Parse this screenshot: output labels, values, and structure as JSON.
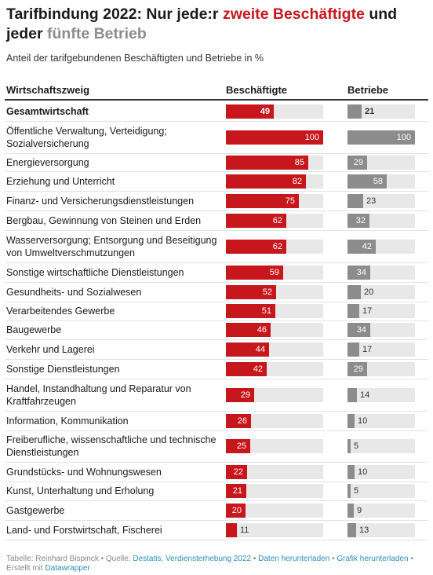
{
  "title": {
    "part1": "Tarifbindung 2022: Nur jede:r ",
    "part2": "zweite Beschäftigte",
    "part3": " und jeder ",
    "part4": "fünfte Betrieb"
  },
  "subtitle": "Anteil der tarifgebundenen Beschäftigten und Betriebe in %",
  "chart_data": {
    "type": "bar",
    "columns": [
      "Wirtschaftszweig",
      "Beschäftigte",
      "Betriebe"
    ],
    "xlim": [
      0,
      100
    ],
    "colors": {
      "Beschäftigte": "#c8161d",
      "Betriebe": "#8c8c8c",
      "background": "#e8e8e8"
    },
    "rows": [
      {
        "label": "Gesamtwirtschaft",
        "emp": 49,
        "est": 21,
        "bold": true
      },
      {
        "label": "Öffentliche Verwaltung, Verteidigung; Sozialversicherung",
        "emp": 100,
        "est": 100
      },
      {
        "label": "Energieversorgung",
        "emp": 85,
        "est": 29
      },
      {
        "label": "Erziehung und Unterricht",
        "emp": 82,
        "est": 58
      },
      {
        "label": "Finanz- und Versicherungsdienstleistungen",
        "emp": 75,
        "est": 23
      },
      {
        "label": "Bergbau, Gewinnung von Steinen und Erden",
        "emp": 62,
        "est": 32
      },
      {
        "label": "Wasserversorgung; Entsorgung und Beseitigung von Umweltverschmutzungen",
        "emp": 62,
        "est": 42
      },
      {
        "label": "Sonstige wirtschaftliche Dienstleistungen",
        "emp": 59,
        "est": 34
      },
      {
        "label": "Gesundheits- und Sozialwesen",
        "emp": 52,
        "est": 20
      },
      {
        "label": "Verarbeitendes Gewerbe",
        "emp": 51,
        "est": 17
      },
      {
        "label": "Baugewerbe",
        "emp": 46,
        "est": 34
      },
      {
        "label": "Verkehr und Lagerei",
        "emp": 44,
        "est": 17
      },
      {
        "label": "Sonstige Dienstleistungen",
        "emp": 42,
        "est": 29
      },
      {
        "label": "Handel, Instandhaltung und Reparatur von Kraftfahrzeugen",
        "emp": 29,
        "est": 14
      },
      {
        "label": "Information, Kommunikation",
        "emp": 26,
        "est": 10
      },
      {
        "label": "Freiberufliche, wissenschaftliche und technische Dienstleistungen",
        "emp": 25,
        "est": 5
      },
      {
        "label": "Grundstücks- und Wohnungswesen",
        "emp": 22,
        "est": 10
      },
      {
        "label": "Kunst, Unterhaltung und Erholung",
        "emp": 21,
        "est": 5
      },
      {
        "label": "Gastgewerbe",
        "emp": 20,
        "est": 9
      },
      {
        "label": "Land- und Forstwirtschaft, Fischerei",
        "emp": 11,
        "est": 13
      }
    ]
  },
  "footer": {
    "prefix": "Tabelle: Reinhard Bispinck • Quelle: ",
    "source": "Destatis, Verdiensterhebung 2022",
    "sep1": " • ",
    "download_data": "Daten herunterladen",
    "sep2": " • ",
    "download_chart": "Grafik herunterladen",
    "sep3": " • Erstellt mit ",
    "datawrapper": "Datawrapper"
  }
}
